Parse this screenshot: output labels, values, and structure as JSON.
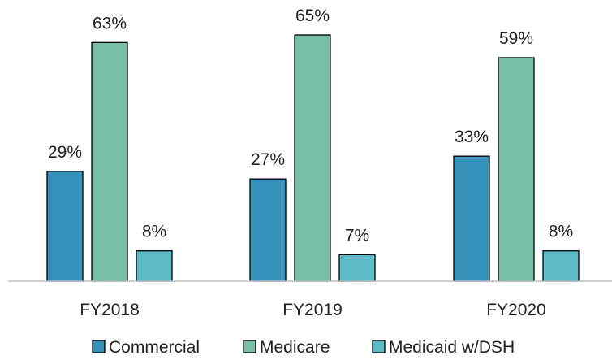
{
  "chart_data": {
    "type": "bar",
    "title": "",
    "xlabel": "",
    "ylabel": "",
    "categories": [
      "FY2018",
      "FY2019",
      "FY2020"
    ],
    "series": [
      {
        "name": "Commercial",
        "values": [
          29,
          27,
          33
        ],
        "labels": [
          "29%",
          "27%",
          "33%"
        ],
        "color": "#3590BA"
      },
      {
        "name": "Medicare",
        "values": [
          63,
          65,
          59
        ],
        "labels": [
          "63%",
          "65%",
          "59%"
        ],
        "color": "#77BEA6"
      },
      {
        "name": "Medicaid w/DSH",
        "values": [
          8,
          7,
          8
        ],
        "labels": [
          "8%",
          "7%",
          "8%"
        ],
        "color": "#5BBAC6"
      }
    ],
    "ylim": [
      0,
      65
    ],
    "grid": false,
    "legend_position": "bottom"
  }
}
